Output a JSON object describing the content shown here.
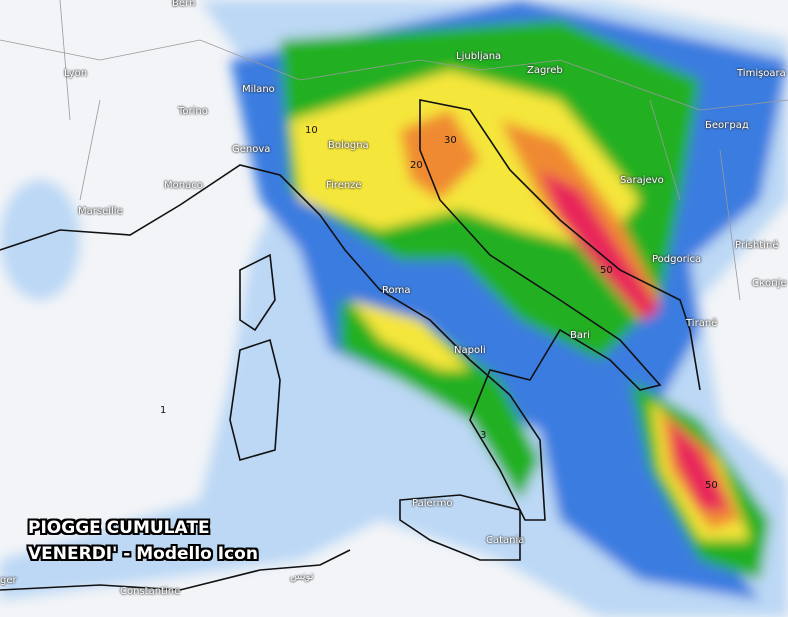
{
  "title": {
    "line1": "PIOGGE CUMULATE",
    "line2": "VENERDI' - Modello Icon"
  },
  "legend_colors": {
    "light": "#bcd8f5",
    "blue": "#3b7be0",
    "darkblue": "#1a4fb8",
    "green": "#22b020",
    "lightgreen": "#7ee03a",
    "yellow": "#f5e63a",
    "orange": "#f08a30",
    "red": "#e8285a"
  },
  "cities": [
    {
      "name": "Bern"
    },
    {
      "name": "Lyon"
    },
    {
      "name": "Milano"
    },
    {
      "name": "Torino"
    },
    {
      "name": "Genova"
    },
    {
      "name": "Monaco"
    },
    {
      "name": "Marseille"
    },
    {
      "name": "Bologna"
    },
    {
      "name": "Firenze"
    },
    {
      "name": "Roma"
    },
    {
      "name": "Napoli"
    },
    {
      "name": "Bari"
    },
    {
      "name": "Palermo"
    },
    {
      "name": "Catania"
    },
    {
      "name": "Ljubljana"
    },
    {
      "name": "Zagreb"
    },
    {
      "name": "Timişoara"
    },
    {
      "name": "Београд"
    },
    {
      "name": "Sarajevo"
    },
    {
      "name": "Podgorica"
    },
    {
      "name": "Tiranë"
    },
    {
      "name": "Prishtinë"
    },
    {
      "name": "Скопје"
    },
    {
      "name": "Constantine"
    },
    {
      "name": "تونس"
    },
    {
      "name": "ger"
    }
  ],
  "contour_labels": [
    "10",
    "20",
    "30",
    "50",
    "3",
    "1"
  ]
}
